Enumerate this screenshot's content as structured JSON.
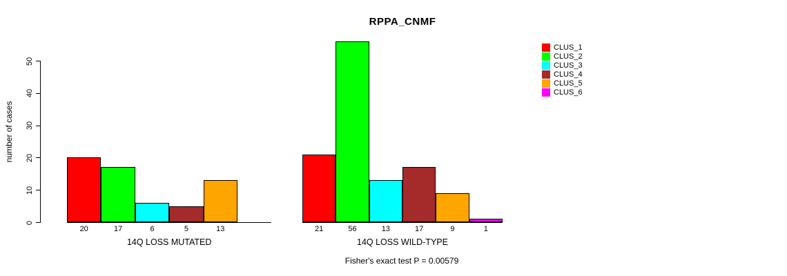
{
  "chart_data": {
    "type": "bar",
    "title": "RPPA_CNMF",
    "ylabel": "number of cases",
    "xlabel": "",
    "ylim": [
      0,
      56
    ],
    "y_ticks": [
      0,
      10,
      20,
      30,
      40,
      50
    ],
    "grid": false,
    "legend_position": "right-outside",
    "series_note": "each bar within a group is one cluster, colored per legend",
    "legend": {
      "entries": [
        {
          "label": "CLUS_1",
          "color": "#FF0000"
        },
        {
          "label": "CLUS_2",
          "color": "#00FF00"
        },
        {
          "label": "CLUS_3",
          "color": "#00FFFF"
        },
        {
          "label": "CLUS_4",
          "color": "#A52A2A"
        },
        {
          "label": "CLUS_5",
          "color": "#FFA500"
        },
        {
          "label": "CLUS_6",
          "color": "#FF00FF"
        }
      ]
    },
    "groups": [
      {
        "label": "14Q LOSS MUTATED",
        "values": [
          20,
          17,
          6,
          5,
          13,
          0
        ]
      },
      {
        "label": "14Q LOSS WILD-TYPE",
        "values": [
          21,
          56,
          13,
          17,
          9,
          1
        ]
      }
    ],
    "annotation": "Fisher's exact test P = 0.00579"
  }
}
